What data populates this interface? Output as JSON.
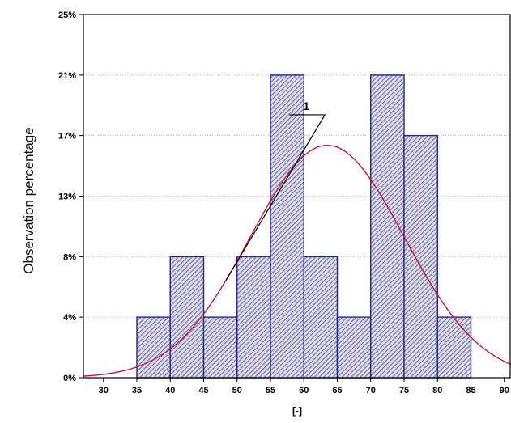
{
  "chart_data": {
    "type": "histogram",
    "ylabel": "Observation percentage",
    "xlabel": "[-]",
    "xlim": [
      27,
      91
    ],
    "ylim": [
      0,
      25
    ],
    "x_ticks": [
      30,
      35,
      40,
      45,
      50,
      55,
      60,
      65,
      70,
      75,
      80,
      85,
      90
    ],
    "y_ticks": [
      {
        "value": 0,
        "label": "0%"
      },
      {
        "value": 4.17,
        "label": "4%"
      },
      {
        "value": 8.33,
        "label": "8%"
      },
      {
        "value": 12.5,
        "label": "13%"
      },
      {
        "value": 16.67,
        "label": "17%"
      },
      {
        "value": 20.83,
        "label": "21%"
      },
      {
        "value": 25,
        "label": "25%"
      }
    ],
    "bins": [
      {
        "x0": 35,
        "x1": 40,
        "value": 4.17
      },
      {
        "x0": 40,
        "x1": 45,
        "value": 8.33
      },
      {
        "x0": 45,
        "x1": 50,
        "value": 4.17
      },
      {
        "x0": 50,
        "x1": 55,
        "value": 8.33
      },
      {
        "x0": 55,
        "x1": 60,
        "value": 20.83
      },
      {
        "x0": 60,
        "x1": 65,
        "value": 8.33
      },
      {
        "x0": 65,
        "x1": 70,
        "value": 4.17
      },
      {
        "x0": 70,
        "x1": 75,
        "value": 20.83
      },
      {
        "x0": 75,
        "x1": 80,
        "value": 16.67
      },
      {
        "x0": 80,
        "x1": 85,
        "value": 4.17
      }
    ],
    "curve": {
      "label": "1",
      "type": "normal",
      "mean": 63.5,
      "peak": 16.0,
      "sd": 11.5
    },
    "annotation": {
      "text": "1",
      "x": 60,
      "y": 18.1,
      "target_x": 48.3
    }
  }
}
